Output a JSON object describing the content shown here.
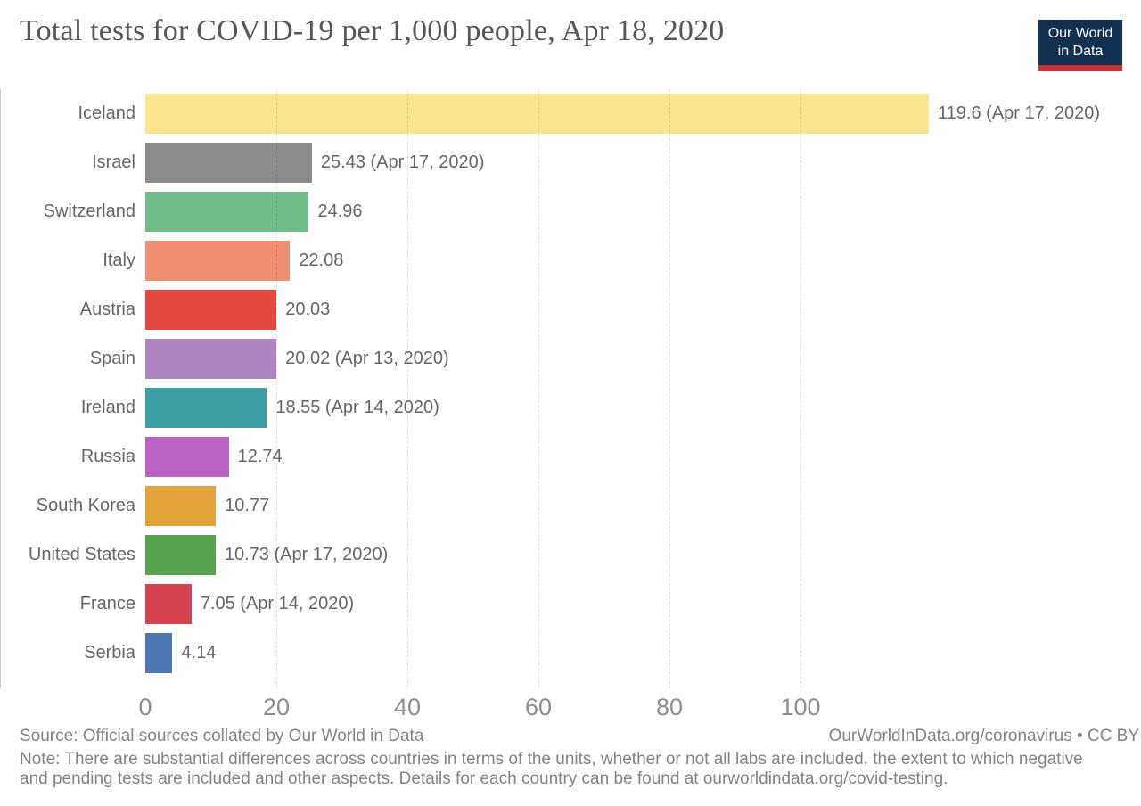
{
  "header": {
    "title": "Total tests for COVID-19 per 1,000 people, Apr 18, 2020",
    "logo": {
      "line1": "Our World",
      "line2": "in Data",
      "bg_color": "#12304f",
      "accent_color": "#c0343c"
    }
  },
  "chart_data": {
    "type": "bar",
    "orientation": "horizontal",
    "title": "Total tests for COVID-19 per 1,000 people, Apr 18, 2020",
    "xlabel": "",
    "ylabel": "",
    "xlim": [
      0,
      152
    ],
    "xticks": [
      0,
      20,
      40,
      60,
      80,
      100
    ],
    "grid": "vertical-dashed",
    "legend": "none",
    "categories": [
      "Iceland",
      "Israel",
      "Switzerland",
      "Italy",
      "Austria",
      "Spain",
      "Ireland",
      "Russia",
      "South Korea",
      "United States",
      "France",
      "Serbia"
    ],
    "values": [
      119.6,
      25.43,
      24.96,
      22.08,
      20.03,
      20.02,
      18.55,
      12.74,
      10.77,
      10.73,
      7.05,
      4.14
    ],
    "rows": [
      {
        "label": "Iceland",
        "value": 119.6,
        "value_label": "119.6 (Apr 17, 2020)",
        "color": "#fbe58e"
      },
      {
        "label": "Israel",
        "value": 25.43,
        "value_label": "25.43 (Apr 17, 2020)",
        "color": "#8c8c8c"
      },
      {
        "label": "Switzerland",
        "value": 24.96,
        "value_label": "24.96",
        "color": "#71bd8a"
      },
      {
        "label": "Italy",
        "value": 22.08,
        "value_label": "22.08",
        "color": "#f08f70"
      },
      {
        "label": "Austria",
        "value": 20.03,
        "value_label": "20.03",
        "color": "#e3493f"
      },
      {
        "label": "Spain",
        "value": 20.02,
        "value_label": "20.02 (Apr 13, 2020)",
        "color": "#ad85c1"
      },
      {
        "label": "Ireland",
        "value": 18.55,
        "value_label": "18.55 (Apr 14, 2020)",
        "color": "#3b9fa5"
      },
      {
        "label": "Russia",
        "value": 12.74,
        "value_label": "12.74",
        "color": "#bb62c4"
      },
      {
        "label": "South Korea",
        "value": 10.77,
        "value_label": "10.77",
        "color": "#e2a33b"
      },
      {
        "label": "United States",
        "value": 10.73,
        "value_label": "10.73 (Apr 17, 2020)",
        "color": "#56a34e"
      },
      {
        "label": "France",
        "value": 7.05,
        "value_label": "7.05 (Apr 14, 2020)",
        "color": "#d6434e"
      },
      {
        "label": "Serbia",
        "value": 4.14,
        "value_label": "4.14",
        "color": "#4d77b5"
      }
    ]
  },
  "footer": {
    "source": "Source: Official sources collated by Our World in Data",
    "link": "OurWorldInData.org/coronavirus • CC BY",
    "note_line1": "Note: There are substantial differences across countries in terms of the units, whether or not all labs are included, the extent to which negative",
    "note_line2": "and pending tests are included and other aspects. Details for each country can be found at ourworldindata.org/covid-testing."
  }
}
